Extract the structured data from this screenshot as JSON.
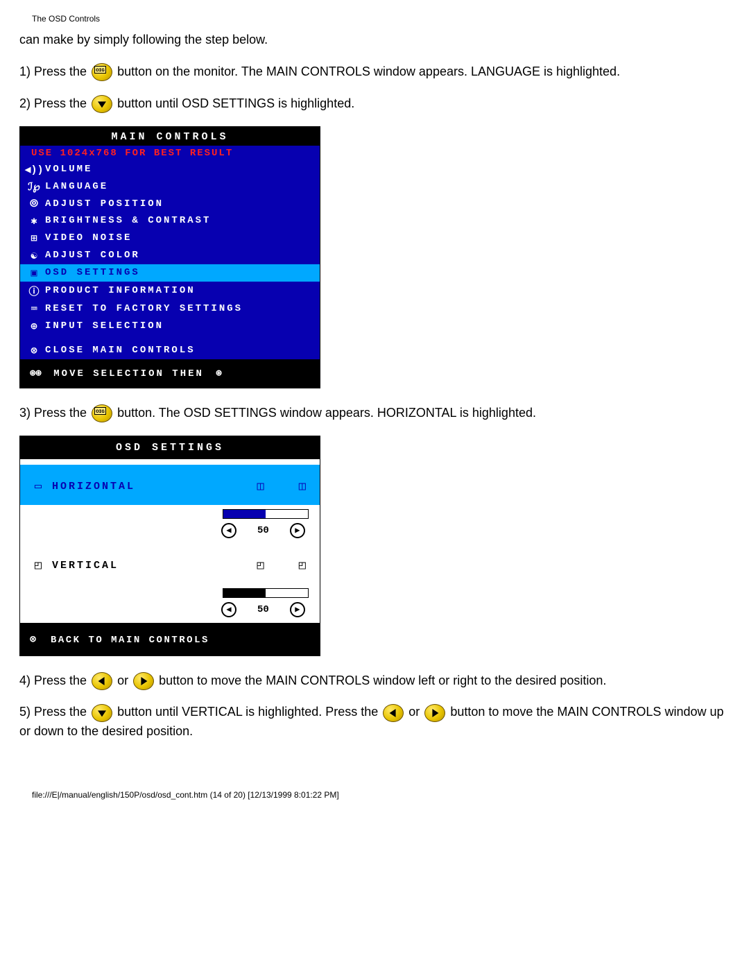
{
  "header": "The OSD Controls",
  "intro": "can make by simply following the step below.",
  "steps": {
    "s1a": "1) Press the ",
    "s1b": " button on the monitor. The MAIN CONTROLS window appears. LANGUAGE is highlighted.",
    "s2a": "2) Press the ",
    "s2b": " button until OSD SETTINGS is highlighted.",
    "s3a": "3) Press the ",
    "s3b": " button. The OSD SETTINGS window appears. HORIZONTAL is highlighted.",
    "s4a": "4) Press the ",
    "s4_or": " or ",
    "s4b": " button to move the MAIN CONTROLS window left or right to the desired position.",
    "s5a": "5) Press the ",
    "s5b": " button until VERTICAL is highlighted. Press the ",
    "s5_or": " or ",
    "s5c": " button to move the MAIN CONTROLS window up or down to the desired position."
  },
  "main_panel": {
    "title": "MAIN CONTROLS",
    "subtitle": "USE 1024x768 FOR BEST RESULT",
    "items": [
      {
        "icon": "◀))",
        "label": "VOLUME",
        "sel": false
      },
      {
        "icon": "ℐ℘",
        "label": "LANGUAGE",
        "sel": false
      },
      {
        "icon": "⦾",
        "label": "ADJUST POSITION",
        "sel": false
      },
      {
        "icon": "✱",
        "label": "BRIGHTNESS & CONTRAST",
        "sel": false
      },
      {
        "icon": "⊞",
        "label": "VIDEO NOISE",
        "sel": false
      },
      {
        "icon": "☯",
        "label": "ADJUST COLOR",
        "sel": false
      },
      {
        "icon": "▣",
        "label": "OSD SETTINGS",
        "sel": true
      },
      {
        "icon": "ⓘ",
        "label": "PRODUCT INFORMATION",
        "sel": false
      },
      {
        "icon": "⌨",
        "label": "RESET TO FACTORY SETTINGS",
        "sel": false
      },
      {
        "icon": "⊕",
        "label": "INPUT SELECTION",
        "sel": false
      }
    ],
    "close": {
      "icon": "⊗",
      "label": "CLOSE MAIN CONTROLS"
    },
    "footer_left_icons": "⊛⊛",
    "footer_text": "MOVE SELECTION THEN",
    "footer_right_icon": "⊛"
  },
  "settings_panel": {
    "title": "OSD SETTINGS",
    "rows": [
      {
        "icon": "▭",
        "label": "HORIZONTAL",
        "hi": true,
        "value": "50",
        "fill_pct": 50,
        "pos_icons": [
          "◫",
          "◫"
        ]
      },
      {
        "icon": "◰",
        "label": "VERTICAL",
        "hi": false,
        "value": "50",
        "fill_pct": 50,
        "pos_icons": [
          "◰",
          "◰"
        ]
      }
    ],
    "back": {
      "icon": "⊗",
      "label": "BACK TO MAIN CONTROLS"
    }
  },
  "colors": {
    "osd_blue": "#0700b0",
    "highlight": "#00a8ff",
    "warn_red": "#ff2020",
    "btn_yellow": "#e8c400"
  },
  "page_footer": "file:///E|/manual/english/150P/osd/osd_cont.htm (14 of 20) [12/13/1999 8:01:22 PM]"
}
